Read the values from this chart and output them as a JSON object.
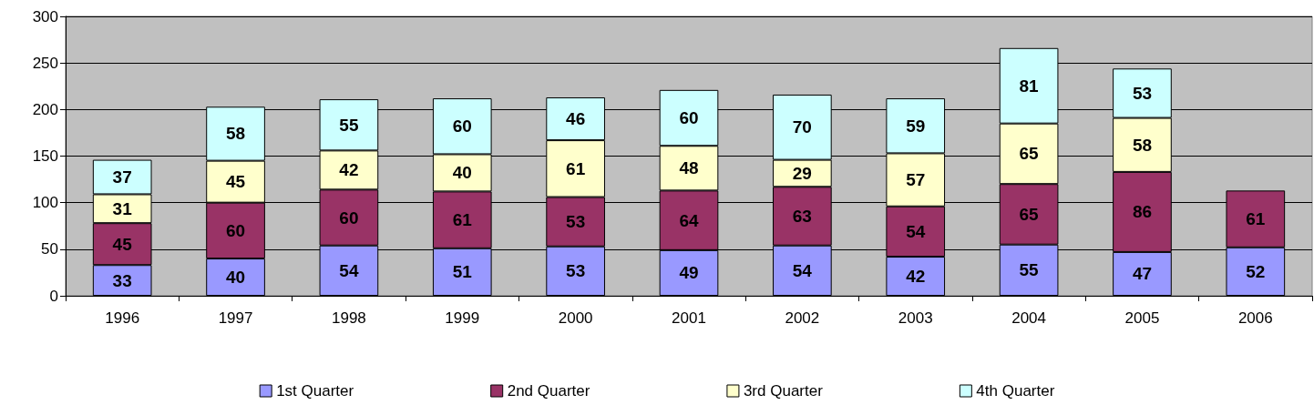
{
  "chart_data": {
    "type": "bar",
    "stacked": true,
    "data_labels": true,
    "grid": "y",
    "legend": "bottom",
    "categories": [
      "1996",
      "1997",
      "1998",
      "1999",
      "2000",
      "2001",
      "2002",
      "2003",
      "2004",
      "2005",
      "2006"
    ],
    "ylim": [
      0,
      300
    ],
    "yticks": [
      0,
      50,
      100,
      150,
      200,
      250,
      300
    ],
    "series": [
      {
        "name": "1st Quarter",
        "color": "#9999ff",
        "values": [
          33,
          40,
          54,
          51,
          53,
          49,
          54,
          42,
          55,
          47,
          52
        ]
      },
      {
        "name": "2nd Quarter",
        "color": "#993366",
        "values": [
          45,
          60,
          60,
          61,
          53,
          64,
          63,
          54,
          65,
          86,
          61
        ]
      },
      {
        "name": "3rd Quarter",
        "color": "#ffffcc",
        "values": [
          31,
          45,
          42,
          40,
          61,
          48,
          29,
          57,
          65,
          58,
          null
        ]
      },
      {
        "name": "4th Quarter",
        "color": "#ccffff",
        "values": [
          37,
          58,
          55,
          60,
          46,
          60,
          70,
          59,
          81,
          53,
          null
        ]
      }
    ]
  }
}
